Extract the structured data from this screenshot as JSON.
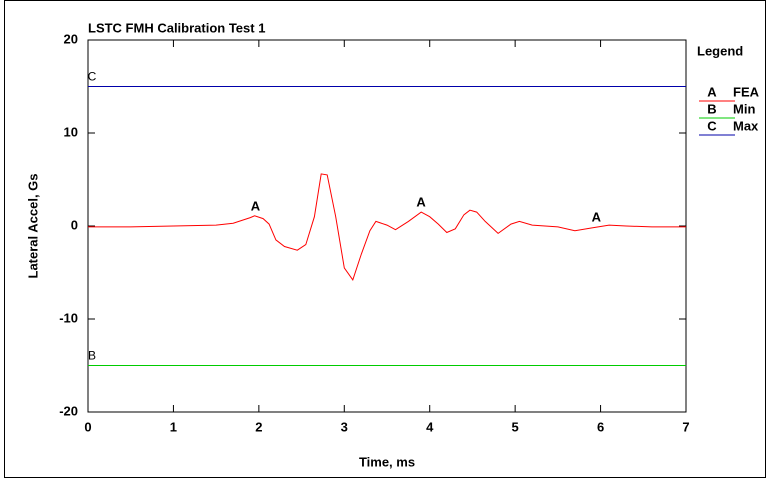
{
  "chart_data": {
    "type": "line",
    "title": "LSTC FMH Calibration Test 1",
    "xlabel": "Time, ms",
    "ylabel": "Lateral Accel, Gs",
    "legend_title": "Legend",
    "xlim": [
      0,
      7
    ],
    "ylim": [
      -20,
      20
    ],
    "xticks": [
      0,
      1,
      2,
      3,
      4,
      5,
      6,
      7
    ],
    "yticks": [
      -20,
      -10,
      0,
      10,
      20
    ],
    "series": [
      {
        "label": "A",
        "name": "FEA",
        "color": "#ff0000",
        "x": [
          0,
          0.5,
          1.0,
          1.5,
          1.7,
          1.9,
          1.95,
          2.05,
          2.12,
          2.2,
          2.3,
          2.45,
          2.55,
          2.65,
          2.73,
          2.8,
          2.9,
          3.0,
          3.1,
          3.2,
          3.3,
          3.37,
          3.5,
          3.6,
          3.75,
          3.9,
          4.0,
          4.1,
          4.2,
          4.3,
          4.4,
          4.47,
          4.55,
          4.65,
          4.8,
          4.95,
          5.05,
          5.2,
          5.5,
          5.7,
          5.9,
          6.1,
          6.3,
          6.6,
          7.0
        ],
        "values": [
          -0.1,
          -0.1,
          0,
          0.1,
          0.3,
          0.9,
          1.1,
          0.8,
          0.2,
          -1.5,
          -2.2,
          -2.6,
          -2.0,
          1.0,
          5.6,
          5.5,
          1.0,
          -4.5,
          -5.8,
          -3.0,
          -0.5,
          0.5,
          0.1,
          -0.4,
          0.5,
          1.5,
          1.0,
          0.2,
          -0.7,
          -0.3,
          1.2,
          1.7,
          1.5,
          0.5,
          -0.8,
          0.2,
          0.5,
          0.1,
          -0.1,
          -0.5,
          -0.2,
          0.1,
          0.0,
          -0.1,
          -0.1
        ]
      },
      {
        "label": "B",
        "name": "Min",
        "color": "#00cc00",
        "x": [
          0,
          7
        ],
        "values": [
          -15,
          -15
        ]
      },
      {
        "label": "C",
        "name": "Max",
        "color": "#0000aa",
        "x": [
          0,
          7
        ],
        "values": [
          15,
          15
        ]
      }
    ]
  }
}
